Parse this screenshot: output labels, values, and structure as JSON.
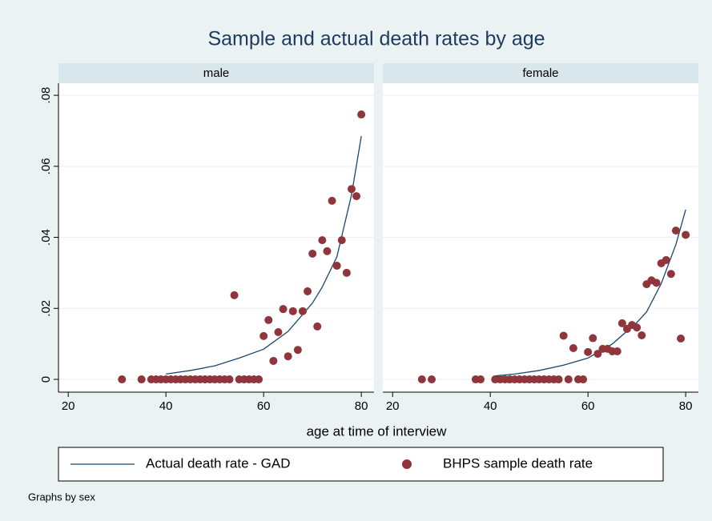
{
  "chart_data": {
    "type": "scatter",
    "title": "Sample and actual death rates by age",
    "xlabel": "age at time of interview",
    "note": "Graphs by sex",
    "xlim": [
      18,
      82.6
    ],
    "xticks": [
      20,
      40,
      60,
      80
    ],
    "ylim": [
      -0.0036,
      0.0834
    ],
    "yticks": [
      0,
      {
        "value": 0.02,
        "label": ".02"
      },
      {
        "value": 0.04,
        "label": ".04"
      },
      {
        "value": 0.06,
        "label": ".06"
      },
      {
        "value": 0.08,
        "label": ".08"
      }
    ],
    "grid": true,
    "series": [
      {
        "name": "Actual death rate - GAD",
        "color": "#1a476f",
        "type": "line"
      },
      {
        "name": "BHPS sample death rate",
        "color": "#90353b",
        "type": "scatter"
      }
    ],
    "panels": [
      {
        "name": "male",
        "line": {
          "x": [
            40,
            45,
            50,
            55,
            60,
            65,
            70,
            72,
            75,
            78,
            80
          ],
          "values": [
            0.0015,
            0.0025,
            0.0038,
            0.006,
            0.0085,
            0.0135,
            0.0215,
            0.026,
            0.0345,
            0.052,
            0.0685
          ]
        },
        "points": {
          "x": [
            31,
            35,
            37,
            38,
            39,
            40,
            41,
            42,
            43,
            44,
            45,
            46,
            47,
            48,
            49,
            50,
            51,
            52,
            53,
            54,
            55,
            56,
            57,
            58,
            59,
            60,
            61,
            62,
            63,
            64,
            65,
            66,
            67,
            68,
            69,
            70,
            71,
            72,
            73,
            74,
            75,
            76,
            77,
            78,
            79,
            80
          ],
          "values": [
            0,
            0,
            0,
            0,
            0,
            0,
            0,
            0,
            0,
            0,
            0,
            0,
            0,
            0,
            0,
            0,
            0,
            0,
            0,
            0.0237,
            0,
            0,
            0,
            0,
            0,
            0.0122,
            0.0167,
            0.0052,
            0.0133,
            0.0198,
            0.0065,
            0.0192,
            0.0083,
            0.0192,
            0.0248,
            0.0354,
            0.0149,
            0.0392,
            0.0361,
            0.0503,
            0.032,
            0.0392,
            0.03,
            0.0536,
            0.0516,
            0.0746
          ]
        }
      },
      {
        "name": "female",
        "line": {
          "x": [
            41,
            45,
            50,
            55,
            60,
            65,
            70,
            72,
            75,
            78,
            80
          ],
          "values": [
            0.001,
            0.0015,
            0.0025,
            0.004,
            0.006,
            0.01,
            0.016,
            0.019,
            0.027,
            0.038,
            0.0478
          ]
        },
        "points": {
          "x": [
            26,
            28,
            37,
            38,
            41,
            42,
            43,
            44,
            45,
            46,
            47,
            48,
            49,
            50,
            51,
            52,
            53,
            54,
            55,
            56,
            57,
            58,
            59,
            60,
            61,
            62,
            63,
            64,
            65,
            66,
            67,
            68,
            69,
            70,
            71,
            72,
            73,
            74,
            75,
            76,
            77,
            78,
            79,
            80
          ],
          "values": [
            0,
            0,
            0,
            0,
            0,
            0,
            0,
            0,
            0,
            0,
            0,
            0,
            0,
            0,
            0,
            0,
            0,
            0,
            0.0123,
            0,
            0.0088,
            0,
            0,
            0.0077,
            0.0116,
            0.0072,
            0.0086,
            0.0086,
            0.0079,
            0.0079,
            0.0158,
            0.0142,
            0.0153,
            0.0146,
            0.0124,
            0.0268,
            0.0279,
            0.0272,
            0.0327,
            0.0336,
            0.0297,
            0.0419,
            0.0115,
            0.0407
          ]
        }
      }
    ]
  }
}
